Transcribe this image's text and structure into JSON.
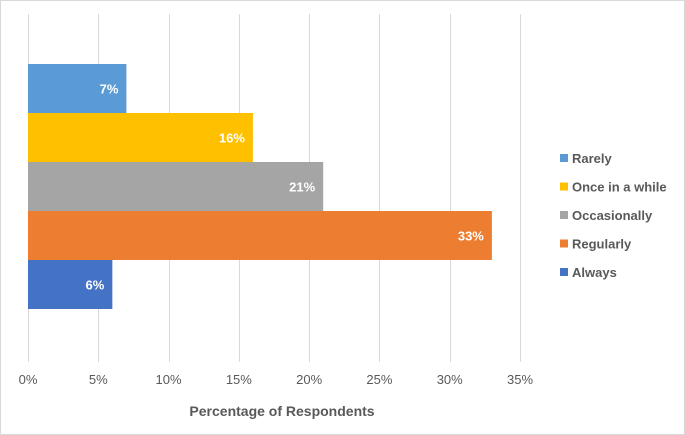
{
  "chart_data": {
    "type": "bar",
    "orientation": "horizontal",
    "title": "",
    "xlabel": "Percentage of Respondents",
    "ylabel": "",
    "xlim": [
      0,
      35
    ],
    "x_ticks": [
      0,
      5,
      10,
      15,
      20,
      25,
      30,
      35
    ],
    "x_tick_labels": [
      "0%",
      "5%",
      "10%",
      "15%",
      "20%",
      "25%",
      "30%",
      "35%"
    ],
    "grid": "vertical",
    "legend_position": "right",
    "series": [
      {
        "name": "Rarely",
        "value": 7,
        "label": "7%",
        "color": "#5B9BD5"
      },
      {
        "name": "Once in a while",
        "value": 16,
        "label": "16%",
        "color": "#FFC000"
      },
      {
        "name": "Occasionally",
        "value": 21,
        "label": "21%",
        "color": "#A5A5A5"
      },
      {
        "name": "Regularly",
        "value": 33,
        "label": "33%",
        "color": "#ED7D31"
      },
      {
        "name": "Always",
        "value": 6,
        "label": "6%",
        "color": "#4472C4"
      }
    ]
  }
}
